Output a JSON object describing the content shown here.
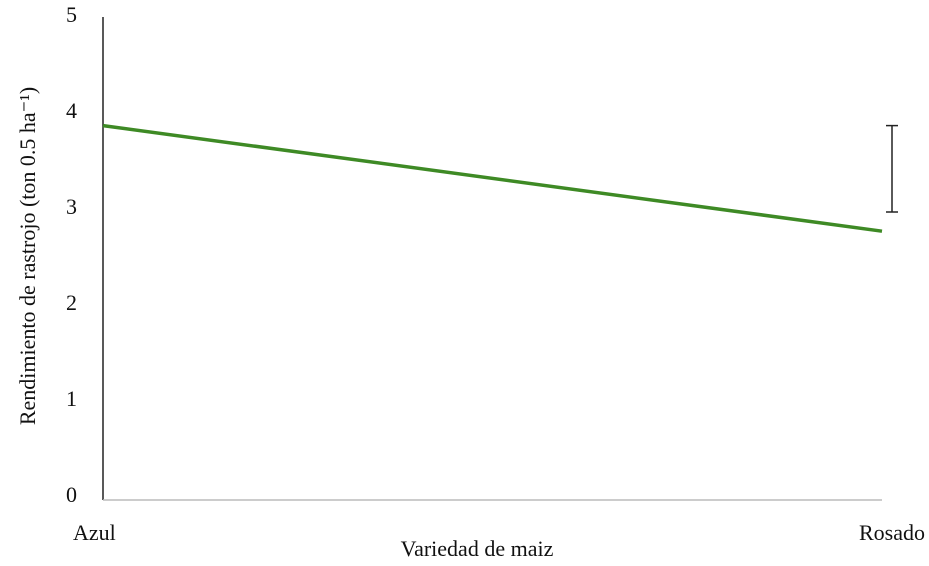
{
  "chart_data": {
    "type": "line",
    "categories": [
      "Azul",
      "Rosado"
    ],
    "series": [
      {
        "color": "#3e8a25",
        "values": [
          3.9,
          2.8
        ]
      }
    ],
    "error_bar_range": [
      3.0,
      3.9
    ],
    "xlabel": "Variedad de maiz",
    "ylabel": "Rendimiento  de rastrojo (ton 0.5 ha⁻¹)",
    "ylim": [
      0,
      5
    ],
    "yticks": [
      0,
      1,
      2,
      3,
      4,
      5
    ],
    "grid": false
  }
}
